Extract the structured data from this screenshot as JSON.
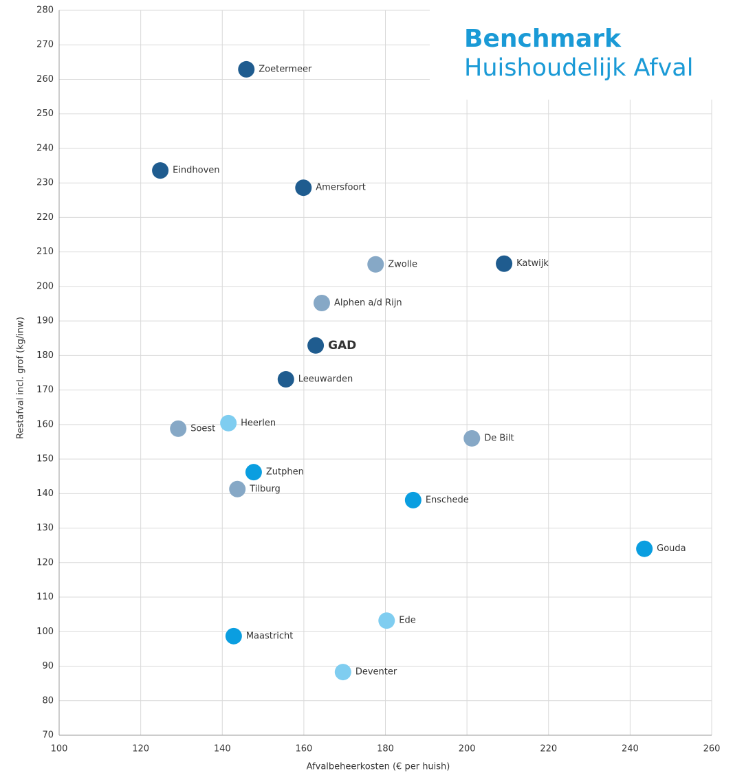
{
  "chart_data": {
    "type": "scatter",
    "xlabel": "Afvalbeheerkosten (€ per huish)",
    "ylabel": "Restafval incl. grof (kg/inw)",
    "logo": {
      "line1": "Benchmark",
      "line2": "Huishoudelijk Afval"
    },
    "labels": [
      "Zoetermeer",
      "Eindhoven",
      "Amersfoort",
      "Zwolle",
      "Katwijk",
      "Alphen a/d Rijn",
      "GAD",
      "Leeuwarden",
      "Soest",
      "Heerlen",
      "De Bilt",
      "Zutphen",
      "Tilburg",
      "Enschede",
      "Gouda",
      "Ede",
      "Maastricht",
      "Deventer"
    ],
    "x": [
      145.9,
      124.8,
      159.9,
      177.6,
      209.1,
      164.4,
      162.9,
      155.6,
      129.2,
      141.5,
      201.2,
      147.7,
      143.7,
      186.8,
      243.5,
      180.3,
      142.8,
      169.6
    ],
    "y": [
      262.9,
      233.6,
      228.6,
      206.4,
      206.6,
      195.2,
      182.9,
      173.1,
      158.8,
      160.4,
      156.0,
      146.2,
      141.3,
      138.1,
      124.0,
      103.2,
      98.7,
      88.3
    ],
    "colors": [
      "#1f5c8f",
      "#1f5c8f",
      "#1f5c8f",
      "#86a8c6",
      "#1f5c8f",
      "#86a8c6",
      "#1f5c8f",
      "#1f5c8f",
      "#86a8c6",
      "#7fcdf0",
      "#86a8c6",
      "#0a9ee0",
      "#86a8c6",
      "#0a9ee0",
      "#0a9ee0",
      "#7fcdf0",
      "#0a9ee0",
      "#7fcdf0"
    ],
    "bold_label_index": 6,
    "xlim": [
      100,
      260
    ],
    "xticks": [
      100,
      120,
      140,
      160,
      180,
      200,
      220,
      240,
      260
    ],
    "ylim": [
      70,
      280
    ],
    "yticks": [
      70,
      80,
      90,
      100,
      110,
      120,
      130,
      140,
      150,
      160,
      170,
      180,
      190,
      200,
      210,
      220,
      230,
      240,
      250,
      260,
      270,
      280
    ],
    "grid": true
  }
}
